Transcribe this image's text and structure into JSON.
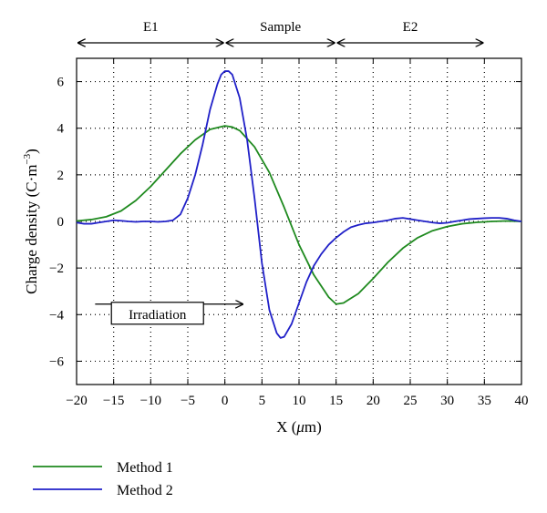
{
  "chart_data": {
    "type": "line",
    "xlabel_parts": [
      "X (",
      "μ",
      "m)"
    ],
    "ylabel_parts": [
      "Charge density (C·m",
      "−3",
      ")"
    ],
    "xlim": [
      -20,
      40
    ],
    "ylim": [
      -7,
      7
    ],
    "grid": true,
    "legend_position": "bottom-left, below plot",
    "xticks": [
      {
        "value": -20,
        "label": "−20"
      },
      {
        "value": -15,
        "label": "−15"
      },
      {
        "value": -10,
        "label": "−10"
      },
      {
        "value": -5,
        "label": "−5"
      },
      {
        "value": 0,
        "label": "0"
      },
      {
        "value": 5,
        "label": "5"
      },
      {
        "value": 10,
        "label": "10"
      },
      {
        "value": 15,
        "label": "15"
      },
      {
        "value": 20,
        "label": "20"
      },
      {
        "value": 25,
        "label": "25"
      },
      {
        "value": 30,
        "label": "30"
      },
      {
        "value": 35,
        "label": "35"
      },
      {
        "value": 40,
        "label": "40"
      }
    ],
    "yticks": [
      {
        "value": 6,
        "label": "6"
      },
      {
        "value": 4,
        "label": "4"
      },
      {
        "value": 2,
        "label": "2"
      },
      {
        "value": 0,
        "label": "0"
      },
      {
        "value": -2,
        "label": "−2"
      },
      {
        "value": -4,
        "label": "−4"
      },
      {
        "value": -6,
        "label": "−6"
      }
    ],
    "regions": [
      {
        "label": "E1",
        "from": -20,
        "to": 0
      },
      {
        "label": "Sample",
        "from": 0,
        "to": 15
      },
      {
        "label": "E2",
        "from": 15,
        "to": 35
      }
    ],
    "annotation": {
      "text": "Irradiation",
      "arrow_from_x": -17.5,
      "arrow_to_x": 2.5,
      "y": -3.55
    },
    "series": [
      {
        "name": "Method 1",
        "color": "#1f8a1f",
        "x": [
          -20,
          -18,
          -16,
          -14,
          -12,
          -10,
          -8,
          -6,
          -4,
          -2,
          0,
          1,
          2,
          4,
          6,
          8,
          10,
          12,
          14,
          15,
          16,
          18,
          20,
          22,
          24,
          26,
          28,
          30,
          32,
          34,
          36,
          38,
          40
        ],
        "y": [
          0.02,
          0.08,
          0.2,
          0.45,
          0.9,
          1.5,
          2.2,
          2.9,
          3.5,
          3.95,
          4.1,
          4.05,
          3.9,
          3.2,
          2.1,
          0.6,
          -1.0,
          -2.3,
          -3.25,
          -3.55,
          -3.5,
          -3.1,
          -2.45,
          -1.75,
          -1.15,
          -0.7,
          -0.4,
          -0.22,
          -0.1,
          -0.04,
          0.0,
          0.02,
          0.0
        ]
      },
      {
        "name": "Method 2",
        "color": "#2020c8",
        "x": [
          -20,
          -19,
          -18,
          -17,
          -16,
          -15,
          -14,
          -13,
          -12,
          -11,
          -10,
          -9,
          -8,
          -7,
          -6,
          -5,
          -4,
          -3,
          -2,
          -1,
          -0.5,
          0,
          0.5,
          1,
          2,
          3,
          4,
          5,
          6,
          7,
          7.5,
          8,
          9,
          10,
          11,
          12,
          13,
          14,
          15,
          16,
          17,
          18,
          19,
          20,
          21,
          22,
          23,
          24,
          25,
          26,
          27,
          28,
          29,
          30,
          31,
          32,
          33,
          34,
          35,
          36,
          37,
          38,
          39,
          40
        ],
        "y": [
          -0.05,
          -0.1,
          -0.1,
          -0.05,
          0.0,
          0.05,
          0.03,
          0.0,
          -0.02,
          0.0,
          0.0,
          -0.02,
          0.0,
          0.05,
          0.3,
          1.0,
          2.0,
          3.3,
          4.8,
          5.9,
          6.3,
          6.45,
          6.45,
          6.3,
          5.3,
          3.5,
          1.0,
          -1.8,
          -3.8,
          -4.8,
          -5.0,
          -4.95,
          -4.4,
          -3.5,
          -2.6,
          -1.9,
          -1.4,
          -1.0,
          -0.7,
          -0.45,
          -0.25,
          -0.15,
          -0.08,
          -0.05,
          0.0,
          0.05,
          0.12,
          0.15,
          0.1,
          0.05,
          0.0,
          -0.05,
          -0.08,
          -0.06,
          0.0,
          0.05,
          0.1,
          0.12,
          0.14,
          0.15,
          0.15,
          0.12,
          0.05,
          0.0
        ]
      }
    ]
  }
}
